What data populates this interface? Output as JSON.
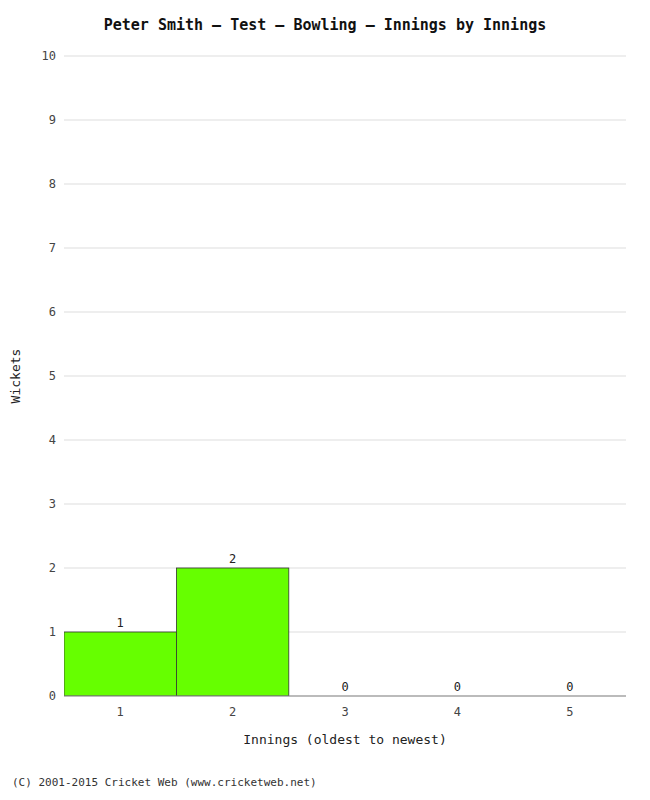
{
  "chart_data": {
    "type": "bar",
    "title": "Peter Smith – Test – Bowling – Innings by Innings",
    "x_label": "Innings (oldest to newest)",
    "y_label": "Wickets",
    "categories": [
      "1",
      "2",
      "3",
      "4",
      "5"
    ],
    "values": [
      1,
      2,
      0,
      0,
      0
    ],
    "color": "#66ff00",
    "ylim": [
      0,
      10
    ],
    "yticks": [
      0,
      1,
      2,
      3,
      4,
      5,
      6,
      7,
      8,
      9,
      10
    ],
    "grid": true,
    "data_labels": true,
    "annotations": [
      "(C) 2001-2015 Cricket Web (www.cricketweb.net)"
    ]
  }
}
